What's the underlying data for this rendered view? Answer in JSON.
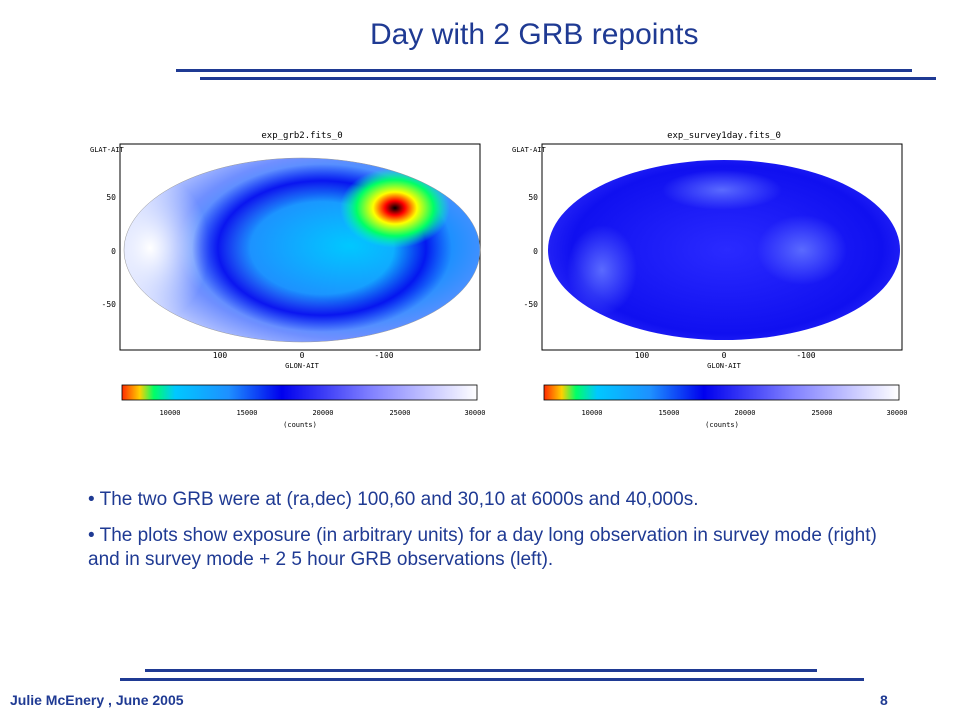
{
  "slide": {
    "title": "Day with 2 GRB repoints",
    "bullets": [
      "• The two GRB were at (ra,dec) 100,60 and 30,10 at 6000s and 40,000s.",
      "• The plots show exposure (in arbitrary units) for a day long observation in survey mode (right) and in survey mode + 2 5 hour GRB observations (left)."
    ],
    "footer_author": "Julie McEnery ,  June 2005",
    "page_number": "8",
    "accent_color": "#1f3a93"
  },
  "plots": {
    "left": {
      "title": "exp_grb2.fits_0",
      "ylabel": "GLAT-AIT",
      "xlabel": "GLON-AIT",
      "yticks": [
        "50",
        "0",
        "-50"
      ],
      "xticks": [
        "100",
        "0",
        "-100"
      ],
      "cbar_ticks": [
        "10000",
        "15000",
        "20000",
        "25000",
        "30000"
      ],
      "cbar_label": "(counts)"
    },
    "right": {
      "title": "exp_survey1day.fits_0",
      "ylabel": "GLAT-AIT",
      "xlabel": "GLON-AIT",
      "yticks": [
        "50",
        "0",
        "-50"
      ],
      "xticks": [
        "100",
        "0",
        "-100"
      ],
      "cbar_ticks": [
        "10000",
        "15000",
        "20000",
        "25000",
        "30000"
      ],
      "cbar_label": "(counts)"
    }
  }
}
